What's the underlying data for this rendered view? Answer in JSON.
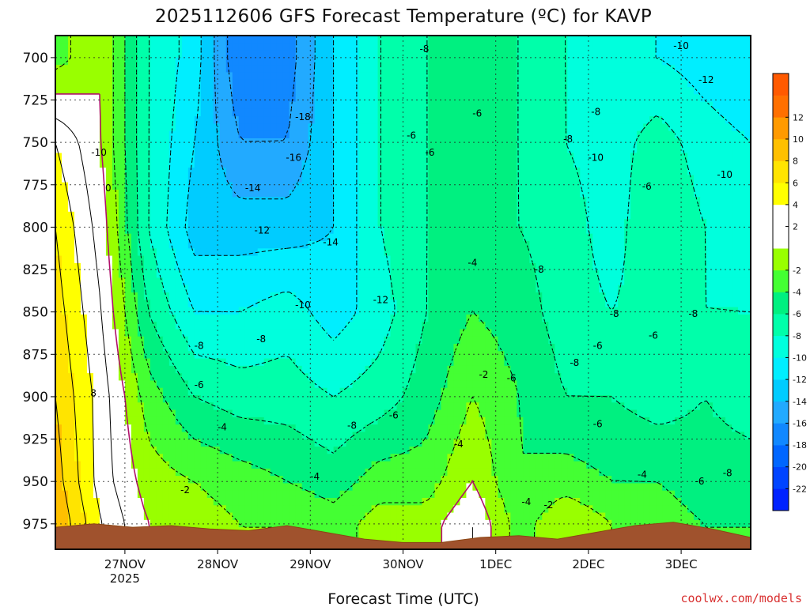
{
  "chart_data": {
    "type": "heatmap",
    "title": "2025112606 GFS Forecast Temperature (ºC) for KAVP",
    "xlabel": "Forecast Time (UTC)",
    "ylabel": "",
    "credit": "coolwx.com/models",
    "x_ticks": [
      {
        "label": "27NOV",
        "sub": "2025",
        "day": 1.0
      },
      {
        "label": "28NOV",
        "sub": "",
        "day": 2.0
      },
      {
        "label": "29NOV",
        "sub": "",
        "day": 3.0
      },
      {
        "label": "30NOV",
        "sub": "",
        "day": 4.0
      },
      {
        "label": "1DEC",
        "sub": "",
        "day": 5.0
      },
      {
        "label": "2DEC",
        "sub": "",
        "day": 6.0
      },
      {
        "label": "3DEC",
        "sub": "",
        "day": 7.0
      }
    ],
    "xlim_days": [
      0.25,
      7.75
    ],
    "y_ticks": [
      700,
      725,
      750,
      775,
      800,
      825,
      850,
      875,
      900,
      925,
      950,
      975
    ],
    "ylim_hpa": [
      687,
      990
    ],
    "grid": "dotted",
    "colorbar": {
      "levels": [
        -24,
        -22,
        -20,
        -18,
        -16,
        -14,
        -12,
        -10,
        -8,
        -6,
        -4,
        -2,
        0,
        2,
        4,
        6,
        8,
        10,
        12,
        14
      ],
      "tick_labels": [
        12,
        10,
        8,
        6,
        4,
        2,
        -2,
        -4,
        -6,
        -8,
        -10,
        -12,
        -14,
        -16,
        -18,
        -20,
        -22
      ],
      "colors": [
        "#0022ff",
        "#0044ff",
        "#0066ff",
        "#1188ff",
        "#22aaff",
        "#00ccff",
        "#00eeff",
        "#00ffdd",
        "#00ffaa",
        "#00f080",
        "#44ff33",
        "#99ff00",
        "#ffffff",
        "#ffffff",
        "#ffff00",
        "#ffe400",
        "#ffc000",
        "#ff9a00",
        "#ff7000",
        "#ff5a00"
      ]
    },
    "time_hours": [
      0,
      12,
      24,
      36,
      48,
      60,
      72,
      84,
      96,
      108,
      120,
      132,
      144,
      156,
      168,
      180
    ],
    "pressure_levels": [
      700,
      750,
      800,
      850,
      900,
      950,
      975
    ],
    "temperature_c": [
      [
        -3,
        0,
        -8,
        -11,
        -18,
        -17,
        -12,
        -8,
        -6,
        -5,
        -6,
        -8,
        -10,
        -10,
        -11,
        -12
      ],
      [
        4,
        0,
        -8,
        -12,
        -16,
        -16,
        -12,
        -8,
        -6,
        -5,
        -6,
        -8,
        -9,
        -7,
        -9,
        -10
      ],
      [
        6,
        1,
        -8,
        -13,
        -13,
        -13,
        -12,
        -8,
        -6,
        -5,
        -6,
        -7,
        -9,
        -6,
        -8,
        -9
      ],
      [
        7,
        2,
        -6,
        -10,
        -10,
        -9,
        -11,
        -9,
        -6,
        -4,
        -5,
        -7,
        -8,
        -7,
        -8,
        -8
      ],
      [
        8,
        3,
        -3,
        -6,
        -7,
        -7,
        -8,
        -7,
        -5,
        -2,
        -4,
        -6,
        -6,
        -7,
        -6,
        -7
      ],
      [
        9,
        3,
        -1,
        -2,
        -3,
        -4,
        -5,
        -3,
        -3,
        0,
        -4,
        -3,
        -4,
        -4,
        -5,
        -5
      ],
      [
        10,
        4,
        0,
        -1,
        -2,
        -2,
        -3,
        -1,
        -1,
        2,
        -3,
        0,
        -2,
        -3,
        -4,
        -4
      ]
    ],
    "terrain_hpa": [
      977,
      975,
      977,
      976,
      978,
      979,
      976,
      980,
      984,
      986,
      986,
      983,
      982,
      984,
      980,
      976,
      974,
      978,
      983
    ],
    "contour_labels": [
      {
        "text": "-18",
        "day": 2.92,
        "hpa": 735
      },
      {
        "text": "-16",
        "day": 2.82,
        "hpa": 759
      },
      {
        "text": "-14",
        "day": 2.38,
        "hpa": 777
      },
      {
        "text": "-14",
        "day": 3.22,
        "hpa": 809
      },
      {
        "text": "-12",
        "day": 2.48,
        "hpa": 802
      },
      {
        "text": "-12",
        "day": 3.76,
        "hpa": 843
      },
      {
        "text": "-10",
        "day": 0.72,
        "hpa": 756
      },
      {
        "text": "-10",
        "day": 2.92,
        "hpa": 846
      },
      {
        "text": "-10",
        "day": 6.08,
        "hpa": 759
      },
      {
        "text": "-10",
        "day": 7.47,
        "hpa": 769
      },
      {
        "text": "-10",
        "day": 7.0,
        "hpa": 693
      },
      {
        "text": "-12",
        "day": 7.27,
        "hpa": 713
      },
      {
        "text": "-8",
        "day": 4.23,
        "hpa": 695
      },
      {
        "text": "-8",
        "day": 5.78,
        "hpa": 748
      },
      {
        "text": "-8",
        "day": 6.08,
        "hpa": 732
      },
      {
        "text": "-8",
        "day": 6.28,
        "hpa": 851
      },
      {
        "text": "-8",
        "day": 7.13,
        "hpa": 851
      },
      {
        "text": "-8",
        "day": 5.47,
        "hpa": 825
      },
      {
        "text": "-8",
        "day": 5.85,
        "hpa": 880
      },
      {
        "text": "-8",
        "day": 1.8,
        "hpa": 870
      },
      {
        "text": "-8",
        "day": 2.47,
        "hpa": 866
      },
      {
        "text": "-8",
        "day": 3.45,
        "hpa": 917
      },
      {
        "text": "-6",
        "day": 4.09,
        "hpa": 746
      },
      {
        "text": "-6",
        "day": 4.29,
        "hpa": 756
      },
      {
        "text": "-6",
        "day": 4.8,
        "hpa": 733
      },
      {
        "text": "-6",
        "day": 6.63,
        "hpa": 776
      },
      {
        "text": "-6",
        "day": 6.7,
        "hpa": 864
      },
      {
        "text": "-6",
        "day": 6.1,
        "hpa": 870
      },
      {
        "text": "-6",
        "day": 6.1,
        "hpa": 916
      },
      {
        "text": "-6",
        "day": 1.8,
        "hpa": 893
      },
      {
        "text": "-6",
        "day": 3.9,
        "hpa": 911
      },
      {
        "text": "-6",
        "day": 5.17,
        "hpa": 889
      },
      {
        "text": "-6",
        "day": 7.2,
        "hpa": 950
      },
      {
        "text": "-4",
        "day": 4.75,
        "hpa": 821
      },
      {
        "text": "-4",
        "day": 2.05,
        "hpa": 918
      },
      {
        "text": "-4",
        "day": 3.05,
        "hpa": 947
      },
      {
        "text": "-4",
        "day": 4.6,
        "hpa": 928
      },
      {
        "text": "-4",
        "day": 5.33,
        "hpa": 962
      },
      {
        "text": "-4",
        "day": 6.58,
        "hpa": 946
      },
      {
        "text": "-2",
        "day": 4.87,
        "hpa": 887
      },
      {
        "text": "-2",
        "day": 5.57,
        "hpa": 964
      },
      {
        "text": "-2",
        "day": 1.65,
        "hpa": 955
      },
      {
        "text": "-8",
        "day": 7.5,
        "hpa": 945
      },
      {
        "text": "0",
        "day": 0.82,
        "hpa": 777
      },
      {
        "text": "8",
        "day": 0.66,
        "hpa": 898
      }
    ]
  }
}
